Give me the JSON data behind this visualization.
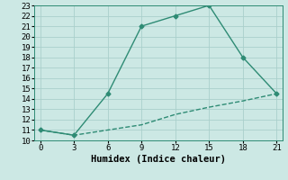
{
  "line1_x": [
    0,
    3,
    6,
    9,
    12,
    15,
    18,
    21
  ],
  "line1_y": [
    11,
    10.5,
    14.5,
    21,
    22,
    23,
    18,
    14.5
  ],
  "line2_x": [
    0,
    3,
    6,
    9,
    12,
    15,
    18,
    21
  ],
  "line2_y": [
    11,
    10.5,
    11.0,
    11.5,
    12.5,
    13.2,
    13.8,
    14.5
  ],
  "line_color": "#2e8b74",
  "bg_color": "#cce8e4",
  "grid_color": "#aacfcb",
  "xlabel": "Humidex (Indice chaleur)",
  "xlim": [
    -0.5,
    21.5
  ],
  "ylim": [
    10,
    23
  ],
  "xticks": [
    0,
    3,
    6,
    9,
    12,
    15,
    18,
    21
  ],
  "yticks": [
    10,
    11,
    12,
    13,
    14,
    15,
    16,
    17,
    18,
    19,
    20,
    21,
    22,
    23
  ],
  "marker": "D",
  "marker_size": 2.5,
  "line_width": 1.0,
  "xlabel_fontsize": 7.5,
  "tick_fontsize": 6.5,
  "font_family": "monospace"
}
